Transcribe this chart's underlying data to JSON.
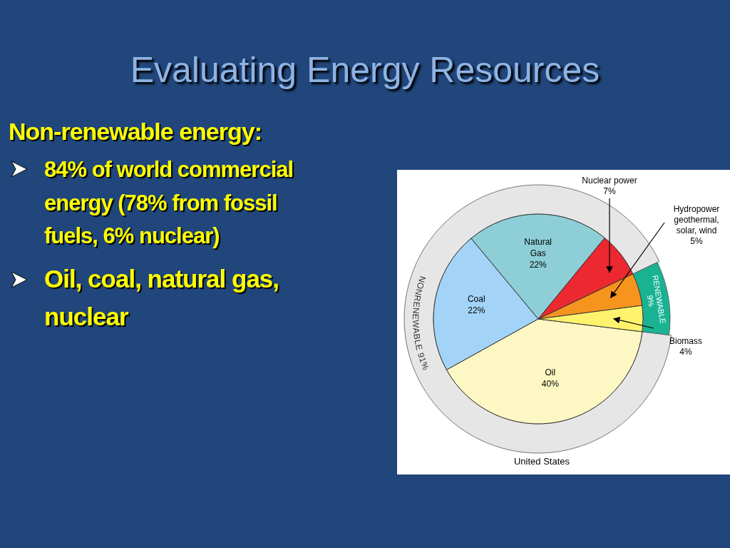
{
  "chart_data": [
    {
      "type": "other",
      "title": "Evaluating Energy Resources",
      "annotations": [
        "Non-renewable energy:",
        "84% of world commercial energy (78% from fossil fuels, 6% nuclear)",
        "Oil, coal, natural gas, nuclear"
      ]
    },
    {
      "type": "pie",
      "xlabel": "United States",
      "categories": [
        "Oil",
        "Coal",
        "Natural Gas",
        "Nuclear power",
        "Hydropower geothermal, solar, wind",
        "Biomass"
      ],
      "values": [
        40,
        22,
        22,
        7,
        5,
        4
      ],
      "value_labels": [
        "40%",
        "22%",
        "22%",
        "7%",
        "5%",
        "4%"
      ],
      "colors": [
        "#fdf8c3",
        "#a3d4f7",
        "#8ecfd7",
        "#ec2830",
        "#f7941e",
        "#fff36e"
      ]
    },
    {
      "type": "donut",
      "categories": [
        "NONRENEWABLE",
        "RENEWABLE"
      ],
      "values": [
        91,
        9
      ],
      "value_labels": [
        "91%",
        "9%"
      ],
      "colors": [
        "#e6e6e6",
        "#19b394"
      ]
    }
  ]
}
